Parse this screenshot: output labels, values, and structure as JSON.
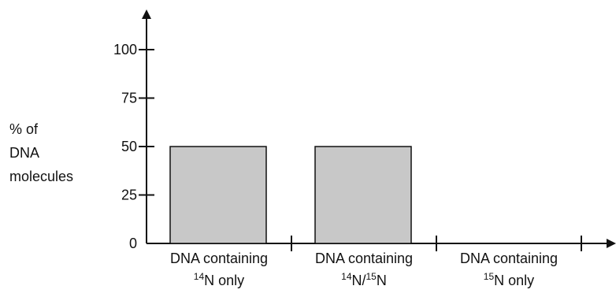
{
  "chart_data": {
    "type": "bar",
    "categories": [
      {
        "line1": "DNA containing",
        "line2_parts": [
          {
            "sup": "14"
          },
          {
            "text": "N only"
          }
        ]
      },
      {
        "line1": "DNA containing",
        "line2_parts": [
          {
            "sup": "14"
          },
          {
            "text": "N/"
          },
          {
            "sup": "15"
          },
          {
            "text": "N"
          }
        ]
      },
      {
        "line1": "DNA containing",
        "line2_parts": [
          {
            "sup": "15"
          },
          {
            "text": "N only"
          }
        ]
      }
    ],
    "values": [
      50,
      50,
      0
    ],
    "ylabel_lines": [
      "% of",
      "DNA",
      "molecules"
    ],
    "xlabel": "",
    "title": "",
    "ylim": [
      0,
      100
    ],
    "y_ticks": [
      0,
      25,
      50,
      75,
      100
    ],
    "grid": false,
    "colors": {
      "bar_fill": "#c8c8c8",
      "bar_stroke": "#111111",
      "axis": "#111111"
    }
  }
}
